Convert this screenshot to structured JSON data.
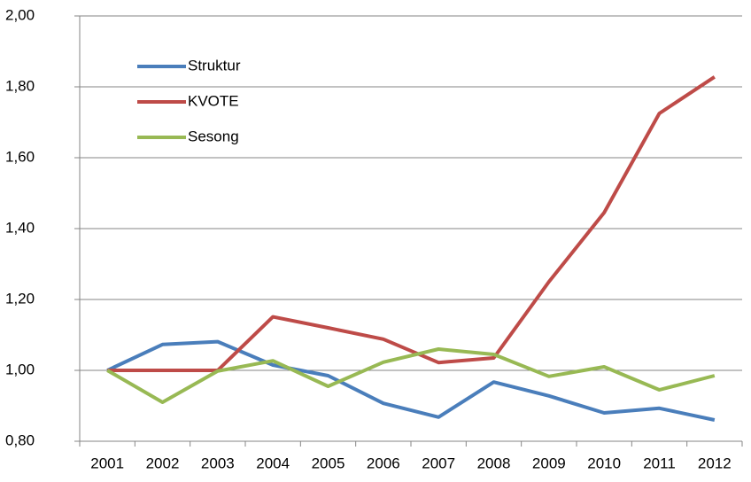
{
  "chart_data": {
    "type": "line",
    "categories": [
      "2001",
      "2002",
      "2003",
      "2004",
      "2005",
      "2006",
      "2007",
      "2008",
      "2009",
      "2010",
      "2011",
      "2012"
    ],
    "series": [
      {
        "name": "Struktur",
        "color": "#4a7ebb",
        "values": [
          1.0,
          1.073,
          1.081,
          1.015,
          0.985,
          0.907,
          0.868,
          0.967,
          0.928,
          0.88,
          0.893,
          0.86
        ]
      },
      {
        "name": "KVOTE",
        "color": "#be4b48",
        "values": [
          1.0,
          1.0,
          1.0,
          1.151,
          1.12,
          1.088,
          1.022,
          1.035,
          1.25,
          1.445,
          1.725,
          1.828
        ]
      },
      {
        "name": "Sesong",
        "color": "#98b954",
        "values": [
          1.0,
          0.91,
          0.998,
          1.027,
          0.955,
          1.023,
          1.06,
          1.045,
          0.983,
          1.01,
          0.945,
          0.985
        ]
      }
    ],
    "ylim": [
      0.8,
      2.0
    ],
    "yticks": [
      {
        "value": 0.8,
        "label": "0,80"
      },
      {
        "value": 1.0,
        "label": "1,00"
      },
      {
        "value": 1.2,
        "label": "1,20"
      },
      {
        "value": 1.4,
        "label": "1,40"
      },
      {
        "value": 1.6,
        "label": "1,60"
      },
      {
        "value": 1.8,
        "label": "1,80"
      },
      {
        "value": 2.0,
        "label": "2,00"
      }
    ],
    "grid": true,
    "legend": "upper-left"
  }
}
